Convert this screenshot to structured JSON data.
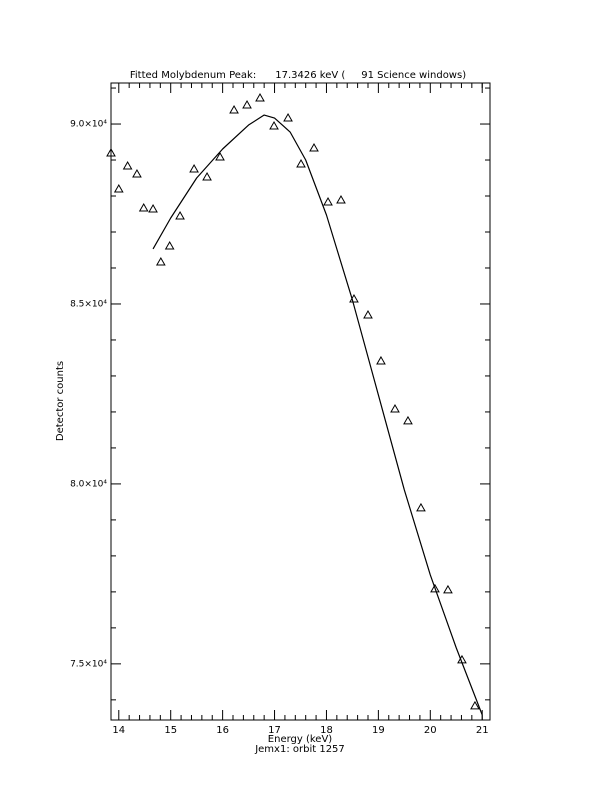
{
  "chart_data": {
    "type": "scatter",
    "title": "Fitted Molybdenum Peak:      17.3426 keV (     91 Science windows)",
    "x_label": "Energy (keV)",
    "y_label": "Detector counts",
    "subtitle": "Jemx1: orbit 1257",
    "xlim": [
      13.85,
      21.15
    ],
    "ylim": [
      73440,
      91140
    ],
    "xticks": [
      14,
      15,
      16,
      17,
      18,
      19,
      20,
      21
    ],
    "xminorticks": [
      14.2,
      14.4,
      14.6,
      14.8,
      15.2,
      15.4,
      15.6,
      15.8,
      16.2,
      16.4,
      16.6,
      16.8,
      17.2,
      17.4,
      17.6,
      17.8,
      18.2,
      18.4,
      18.6,
      18.8,
      19.2,
      19.4,
      19.6,
      19.8,
      20.2,
      20.4,
      20.6,
      20.8,
      21.0
    ],
    "yticks": [
      {
        "value": 75000,
        "label": "7.5×10⁴"
      },
      {
        "value": 80000,
        "label": "8.0×10⁴"
      },
      {
        "value": 85000,
        "label": "8.5×10⁴"
      },
      {
        "value": 90000,
        "label": "9.0×10⁴"
      }
    ],
    "yminorticks": [
      74000,
      76000,
      77000,
      78000,
      79000,
      81000,
      82000,
      83000,
      84000,
      86000,
      87000,
      88000,
      89000,
      91000
    ],
    "color": "#000000",
    "series": [
      {
        "style": "markers",
        "x": [
          13.85,
          14.0,
          14.17,
          14.35,
          14.48,
          14.66,
          14.81,
          14.98,
          15.18,
          15.45,
          15.7,
          15.95,
          16.22,
          16.47,
          16.72,
          16.99,
          17.26,
          17.51,
          17.76,
          18.03,
          18.28,
          18.53,
          18.8,
          19.05,
          19.32,
          19.57,
          19.82,
          20.09,
          20.34,
          20.61,
          20.86
        ],
        "values": [
          89194,
          88194,
          88833,
          88611,
          87667,
          87639,
          86167,
          86611,
          87444,
          88750,
          88528,
          89083,
          90389,
          90528,
          90722,
          89944,
          90167,
          88889,
          89333,
          87833,
          87889,
          85139,
          84694,
          83417,
          82083,
          81750,
          79333,
          77083,
          77056,
          75111,
          73833
        ]
      },
      {
        "style": "line",
        "x": [
          14.66,
          15.0,
          15.5,
          16.0,
          16.5,
          16.8,
          17.0,
          17.3,
          17.6,
          18.0,
          18.5,
          19.0,
          19.5,
          20.0,
          20.5,
          21.0
        ],
        "values": [
          86528,
          87389,
          88500,
          89306,
          89972,
          90250,
          90167,
          89778,
          89000,
          87472,
          85111,
          82472,
          79833,
          77472,
          75444,
          73583
        ]
      }
    ]
  }
}
